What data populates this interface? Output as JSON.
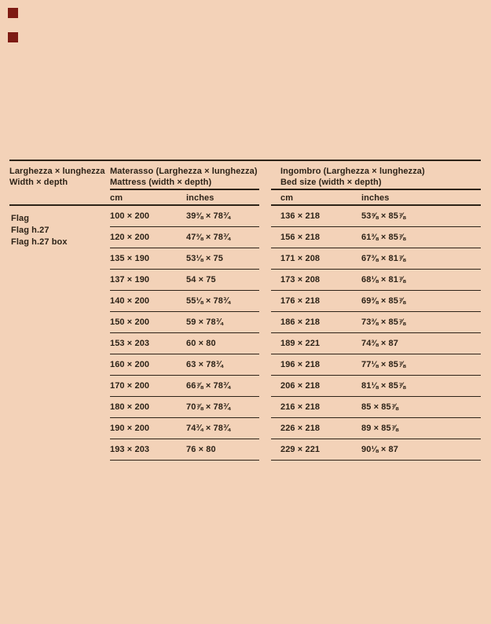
{
  "brand": {
    "square_color": "#7d1a13"
  },
  "colors": {
    "background": "#f3d2b8",
    "ink": "#2d2318",
    "rule": "#2d2318"
  },
  "table": {
    "header": {
      "col1_line1": "Larghezza × lunghezza",
      "col1_line2": "Width × depth",
      "mattress_line1": "Materasso (Larghezza × lunghezza)",
      "mattress_line2": "Mattress (width × depth)",
      "bed_line1": "Ingombro (Larghezza × lunghezza)",
      "bed_line2": "Bed size (width × depth)",
      "sub_mattress_cm": "cm",
      "sub_mattress_inches": "inches",
      "sub_bed_cm": "cm",
      "sub_bed_inches": "inches"
    },
    "row_labels": [
      "Flag",
      "Flag h.27",
      "Flag h.27 box"
    ],
    "rows": [
      {
        "mattress_cm": "100 × 200",
        "mattress_inches": "39⅜ × 78¾",
        "bed_cm": "136 × 218",
        "bed_inches": "53⅝ × 85⅞"
      },
      {
        "mattress_cm": "120 × 200",
        "mattress_inches": "47⅜ × 78¾",
        "bed_cm": "156 × 218",
        "bed_inches": "61⅜ × 85⅞"
      },
      {
        "mattress_cm": "135 × 190",
        "mattress_inches": "53⅛ × 75",
        "bed_cm": "171 × 208",
        "bed_inches": "67⅜ × 81⅞"
      },
      {
        "mattress_cm": "137 × 190",
        "mattress_inches": "54 × 75",
        "bed_cm": "173 × 208",
        "bed_inches": "68⅛ × 81⅞"
      },
      {
        "mattress_cm": "140 × 200",
        "mattress_inches": "55⅛ × 78¾",
        "bed_cm": "176 × 218",
        "bed_inches": "69⅜ × 85⅞"
      },
      {
        "mattress_cm": "150 × 200",
        "mattress_inches": "59 × 78¾",
        "bed_cm": "186 × 218",
        "bed_inches": "73⅜ × 85⅞"
      },
      {
        "mattress_cm": "153 × 203",
        "mattress_inches": "60 × 80",
        "bed_cm": "189 × 221",
        "bed_inches": "74⅜ × 87"
      },
      {
        "mattress_cm": "160 × 200",
        "mattress_inches": "63 × 78¾",
        "bed_cm": "196 × 218",
        "bed_inches": "77⅛ × 85⅞"
      },
      {
        "mattress_cm": "170 × 200",
        "mattress_inches": "66⅞ × 78¾",
        "bed_cm": "206 × 218",
        "bed_inches": "81⅛ × 85⅞"
      },
      {
        "mattress_cm": "180 × 200",
        "mattress_inches": "70⅞ × 78¾",
        "bed_cm": "216 × 218",
        "bed_inches": "85 × 85⅞"
      },
      {
        "mattress_cm": "190 × 200",
        "mattress_inches": "74¾ × 78¾",
        "bed_cm": "226 × 218",
        "bed_inches": "89 × 85⅞"
      },
      {
        "mattress_cm": "193 × 203",
        "mattress_inches": "76 × 80",
        "bed_cm": "229 × 221",
        "bed_inches": "90⅛ × 87"
      }
    ]
  }
}
